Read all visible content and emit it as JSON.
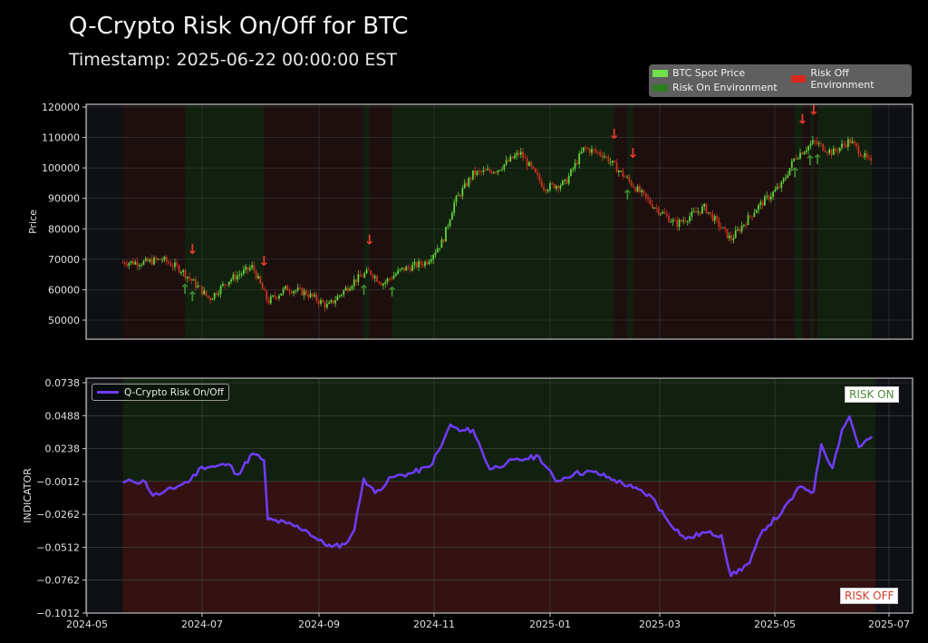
{
  "header": {
    "title": "Q-Crypto Risk On/Off for BTC",
    "subtitle": "Timestamp: 2025-06-22 00:00:00 EST"
  },
  "legend_top": {
    "items": [
      {
        "label": "BTC Spot Price",
        "color": "#5fdc3c"
      },
      {
        "label": "Risk Off Environment",
        "color": "#d9291c"
      },
      {
        "label": "Risk On Environment",
        "color": "#2e7d22"
      }
    ]
  },
  "legend_bottom": {
    "label": "Q-Crypto Risk On/Off",
    "color": "#6e3cf5"
  },
  "annotations": {
    "risk_on": "RISK ON",
    "risk_off": "RISK OFF"
  },
  "colors": {
    "background": "#000000",
    "axes_bg": "#0e1014",
    "risk_on_bg": "#12200f",
    "risk_off_bg": "#1e0f0f",
    "risk_off_bg_bottom": "#341212",
    "up_candle": "#5fd23a",
    "down_candle": "#c8321e",
    "indicator_line": "#6e3cf5",
    "grid": "#3a3a3a",
    "frame": "#bfbfbf"
  },
  "chart_data": [
    {
      "type": "candlestick",
      "title": "BTC Spot Price",
      "xlabel": "",
      "ylabel": "Price",
      "ylim": [
        44000,
        121000
      ],
      "yticks": [
        50000,
        60000,
        70000,
        80000,
        90000,
        100000,
        110000,
        120000
      ],
      "xticks": [
        "2024-05",
        "2024-07",
        "2024-09",
        "2024-11",
        "2025-01",
        "2025-03",
        "2025-05",
        "2025-07"
      ],
      "grid": true,
      "legend_position": "upper right (outside)",
      "approx_close_series": {
        "x": [
          "2024-05-20",
          "2024-06-01",
          "2024-06-10",
          "2024-06-20",
          "2024-06-28",
          "2024-07-05",
          "2024-07-15",
          "2024-07-28",
          "2024-08-05",
          "2024-08-15",
          "2024-08-25",
          "2024-09-06",
          "2024-09-20",
          "2024-09-28",
          "2024-10-05",
          "2024-10-15",
          "2024-10-28",
          "2024-11-06",
          "2024-11-12",
          "2024-11-22",
          "2024-12-05",
          "2024-12-17",
          "2024-12-30",
          "2025-01-10",
          "2025-01-20",
          "2025-01-30",
          "2025-02-10",
          "2025-02-25",
          "2025-03-10",
          "2025-03-25",
          "2025-04-08",
          "2025-04-22",
          "2025-05-05",
          "2025-05-12",
          "2025-05-22",
          "2025-06-01",
          "2025-06-10",
          "2025-06-22"
        ],
        "values": [
          69000,
          69000,
          70000,
          66500,
          61500,
          57000,
          63000,
          67500,
          56000,
          60500,
          59000,
          54500,
          63000,
          66000,
          62000,
          66500,
          69000,
          76000,
          88500,
          98000,
          99500,
          105000,
          93500,
          95000,
          106500,
          104500,
          97500,
          88000,
          81500,
          87000,
          76500,
          87000,
          94500,
          103500,
          108500,
          105000,
          109000,
          101000
        ]
      },
      "regimes": [
        {
          "from": "2024-05-20",
          "to": "2024-06-22",
          "state": "Risk Off"
        },
        {
          "from": "2024-06-22",
          "to": "2024-08-03",
          "state": "Risk On"
        },
        {
          "from": "2024-08-03",
          "to": "2024-09-25",
          "state": "Risk Off"
        },
        {
          "from": "2024-09-25",
          "to": "2024-09-28",
          "state": "Risk On"
        },
        {
          "from": "2024-09-28",
          "to": "2024-10-10",
          "state": "Risk Off"
        },
        {
          "from": "2024-10-10",
          "to": "2025-02-05",
          "state": "Risk On"
        },
        {
          "from": "2025-02-05",
          "to": "2025-02-12",
          "state": "Risk Off"
        },
        {
          "from": "2025-02-12",
          "to": "2025-02-15",
          "state": "Risk On"
        },
        {
          "from": "2025-02-15",
          "to": "2025-05-12",
          "state": "Risk Off"
        },
        {
          "from": "2025-05-12",
          "to": "2025-05-16",
          "state": "Risk On"
        },
        {
          "from": "2025-05-16",
          "to": "2025-05-20",
          "state": "Risk Off"
        },
        {
          "from": "2025-05-20",
          "to": "2025-05-22",
          "state": "Risk On"
        },
        {
          "from": "2025-05-22",
          "to": "2025-05-24",
          "state": "Risk Off"
        },
        {
          "from": "2025-05-24",
          "to": "2025-06-22",
          "state": "Risk On"
        }
      ],
      "signals": [
        {
          "date": "2024-06-22",
          "type": "buy"
        },
        {
          "date": "2024-06-26",
          "type": "sell"
        },
        {
          "date": "2024-06-26",
          "type": "buy"
        },
        {
          "date": "2024-08-03",
          "type": "sell"
        },
        {
          "date": "2024-09-25",
          "type": "buy"
        },
        {
          "date": "2024-09-28",
          "type": "sell"
        },
        {
          "date": "2024-10-10",
          "type": "buy"
        },
        {
          "date": "2025-02-05",
          "type": "sell"
        },
        {
          "date": "2025-02-12",
          "type": "buy"
        },
        {
          "date": "2025-02-15",
          "type": "sell"
        },
        {
          "date": "2025-05-12",
          "type": "buy"
        },
        {
          "date": "2025-05-16",
          "type": "sell"
        },
        {
          "date": "2025-05-20",
          "type": "buy"
        },
        {
          "date": "2025-05-22",
          "type": "sell"
        },
        {
          "date": "2025-05-24",
          "type": "buy"
        }
      ]
    },
    {
      "type": "line",
      "title": "Q-Crypto Risk On/Off",
      "xlabel": "",
      "ylabel": "INDICATOR",
      "ylim": [
        -0.1012,
        0.0738
      ],
      "yticks": [
        -0.1012,
        -0.0762,
        -0.0512,
        -0.0262,
        -0.0012,
        0.0238,
        0.0488,
        0.0738
      ],
      "xticks": [
        "2024-05",
        "2024-07",
        "2024-09",
        "2024-11",
        "2025-01",
        "2025-03",
        "2025-05",
        "2025-07"
      ],
      "threshold": -0.0012,
      "grid": true,
      "legend_position": "upper left",
      "series": [
        {
          "name": "Q-Crypto Risk On/Off",
          "x": [
            "2024-05-20",
            "2024-05-25",
            "2024-06-01",
            "2024-06-05",
            "2024-06-10",
            "2024-06-18",
            "2024-06-25",
            "2024-07-01",
            "2024-07-08",
            "2024-07-15",
            "2024-07-20",
            "2024-07-28",
            "2024-08-03",
            "2024-08-05",
            "2024-08-15",
            "2024-08-25",
            "2024-09-01",
            "2024-09-08",
            "2024-09-15",
            "2024-09-20",
            "2024-09-25",
            "2024-10-01",
            "2024-10-10",
            "2024-10-20",
            "2024-10-30",
            "2024-11-05",
            "2024-11-10",
            "2024-11-15",
            "2024-11-22",
            "2024-12-01",
            "2024-12-10",
            "2024-12-20",
            "2024-12-27",
            "2025-01-05",
            "2025-01-15",
            "2025-01-25",
            "2025-02-05",
            "2025-02-15",
            "2025-02-25",
            "2025-03-05",
            "2025-03-15",
            "2025-03-25",
            "2025-04-03",
            "2025-04-08",
            "2025-04-18",
            "2025-04-25",
            "2025-05-05",
            "2025-05-15",
            "2025-05-22",
            "2025-05-26",
            "2025-06-01",
            "2025-06-06",
            "2025-06-10",
            "2025-06-15",
            "2025-06-22"
          ],
          "values": [
            -0.002,
            -0.001,
            -0.0015,
            -0.012,
            -0.01,
            -0.005,
            0.0,
            0.01,
            0.01,
            0.012,
            0.004,
            0.02,
            0.015,
            -0.03,
            -0.033,
            -0.038,
            -0.046,
            -0.051,
            -0.049,
            -0.038,
            0.001,
            -0.01,
            0.002,
            0.005,
            0.01,
            0.025,
            0.042,
            0.037,
            0.038,
            0.008,
            0.013,
            0.016,
            0.018,
            -0.001,
            0.005,
            0.006,
            0.0,
            -0.006,
            -0.013,
            -0.03,
            -0.045,
            -0.04,
            -0.042,
            -0.073,
            -0.063,
            -0.038,
            -0.025,
            -0.005,
            -0.009,
            0.027,
            0.009,
            0.038,
            0.048,
            0.025,
            0.033
          ]
        }
      ]
    }
  ]
}
